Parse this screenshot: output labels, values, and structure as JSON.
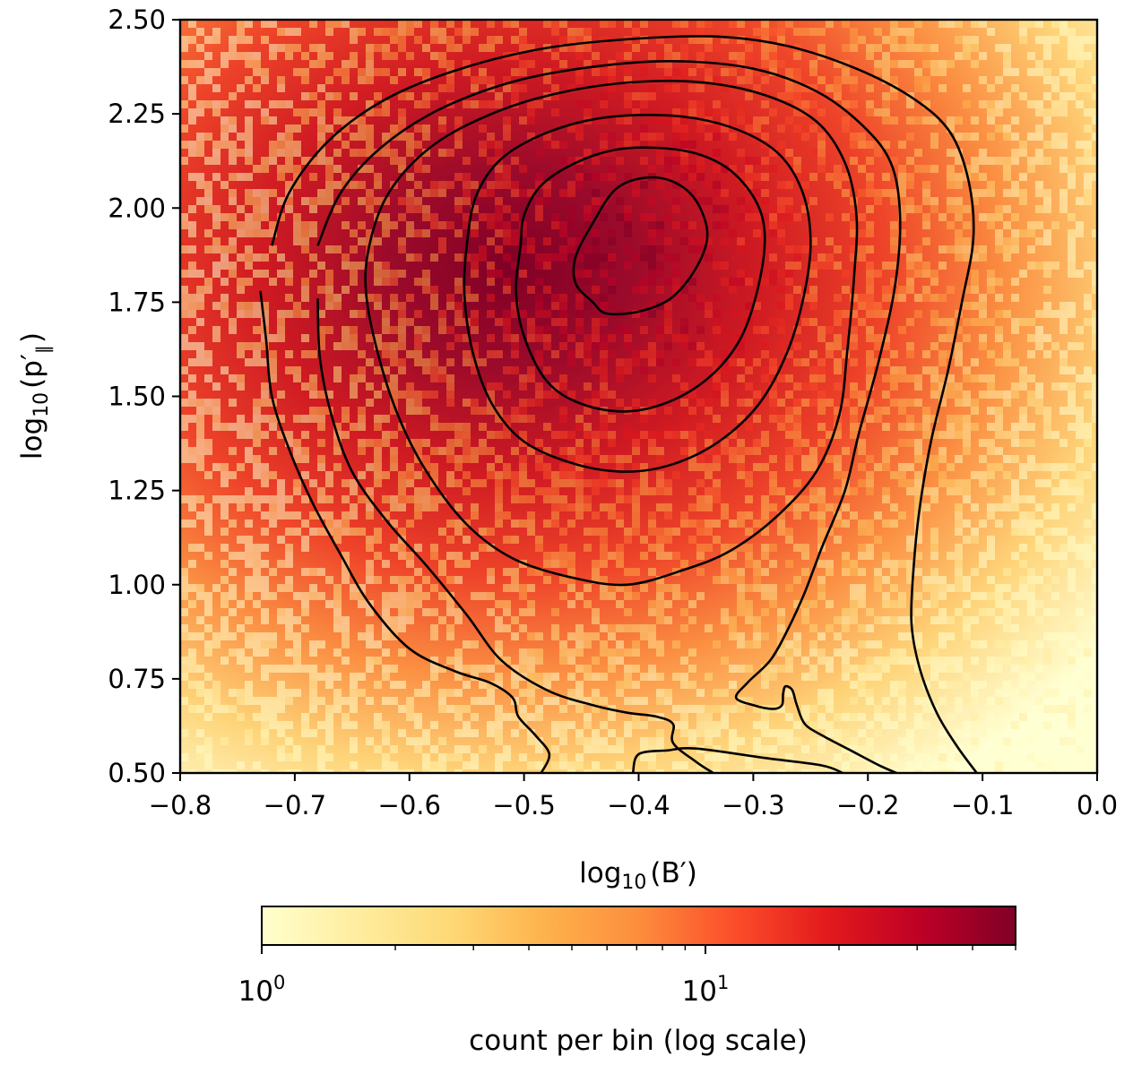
{
  "chart_data": {
    "type": "heatmap",
    "title": "",
    "xlabel": {
      "base": "log",
      "sub": "10",
      "arg": "(B′)"
    },
    "ylabel": {
      "base": "log",
      "sub": "10",
      "arg": "(p′",
      "argsub": "∥",
      "close": ")"
    },
    "xlim": [
      -0.8,
      0.0
    ],
    "ylim": [
      0.5,
      2.5
    ],
    "xticks": [
      -0.8,
      -0.7,
      -0.6,
      -0.5,
      -0.4,
      -0.3,
      -0.2,
      -0.1,
      0.0
    ],
    "xtick_labels": [
      "−0.8",
      "−0.7",
      "−0.6",
      "−0.5",
      "−0.4",
      "−0.3",
      "−0.2",
      "−0.1",
      "0.0"
    ],
    "yticks": [
      0.5,
      0.75,
      1.0,
      1.25,
      1.5,
      1.75,
      2.0,
      2.25,
      2.5
    ],
    "ytick_labels": [
      "0.50",
      "0.75",
      "1.00",
      "1.25",
      "1.50",
      "1.75",
      "2.00",
      "2.25",
      "2.50"
    ],
    "colorbar": {
      "label": "count per bin (log scale)",
      "scale": "log",
      "range": [
        1,
        50
      ],
      "ticks": [
        1,
        10
      ],
      "tick_labels": [
        {
          "base": "10",
          "exp": "0"
        },
        {
          "base": "10",
          "exp": "1"
        }
      ],
      "colormap": [
        "#ffffcc",
        "#ffeda0",
        "#fed976",
        "#feb24c",
        "#fd8d3c",
        "#fc4e2a",
        "#e31a1c",
        "#bd0026",
        "#800026"
      ]
    },
    "density_peak": {
      "x": -0.41,
      "y": 1.9,
      "max_count": 50
    },
    "contours": [
      [
        [
          -0.455,
          1.87
        ],
        [
          -0.44,
          1.96
        ],
        [
          -0.42,
          2.05
        ],
        [
          -0.395,
          2.08
        ],
        [
          -0.37,
          2.07
        ],
        [
          -0.35,
          2.02
        ],
        [
          -0.34,
          1.93
        ],
        [
          -0.35,
          1.84
        ],
        [
          -0.372,
          1.76
        ],
        [
          -0.4,
          1.725
        ],
        [
          -0.428,
          1.72
        ],
        [
          -0.44,
          1.75
        ],
        [
          -0.455,
          1.8
        ]
      ],
      [
        [
          -0.503,
          1.9
        ],
        [
          -0.5,
          1.98
        ],
        [
          -0.485,
          2.06
        ],
        [
          -0.455,
          2.12
        ],
        [
          -0.42,
          2.155
        ],
        [
          -0.385,
          2.16
        ],
        [
          -0.35,
          2.145
        ],
        [
          -0.32,
          2.1
        ],
        [
          -0.298,
          2.02
        ],
        [
          -0.29,
          1.93
        ],
        [
          -0.295,
          1.8
        ],
        [
          -0.31,
          1.66
        ],
        [
          -0.335,
          1.56
        ],
        [
          -0.37,
          1.49
        ],
        [
          -0.41,
          1.46
        ],
        [
          -0.45,
          1.48
        ],
        [
          -0.48,
          1.54
        ],
        [
          -0.5,
          1.66
        ],
        [
          -0.507,
          1.78
        ]
      ],
      [
        [
          -0.55,
          1.9
        ],
        [
          -0.542,
          2.03
        ],
        [
          -0.52,
          2.13
        ],
        [
          -0.48,
          2.2
        ],
        [
          -0.43,
          2.24
        ],
        [
          -0.37,
          2.245
        ],
        [
          -0.32,
          2.215
        ],
        [
          -0.28,
          2.15
        ],
        [
          -0.258,
          2.05
        ],
        [
          -0.25,
          1.92
        ],
        [
          -0.255,
          1.78
        ],
        [
          -0.27,
          1.62
        ],
        [
          -0.295,
          1.48
        ],
        [
          -0.33,
          1.38
        ],
        [
          -0.37,
          1.32
        ],
        [
          -0.41,
          1.3
        ],
        [
          -0.455,
          1.32
        ],
        [
          -0.5,
          1.38
        ],
        [
          -0.528,
          1.48
        ],
        [
          -0.545,
          1.62
        ],
        [
          -0.552,
          1.77
        ]
      ],
      [
        [
          -0.635,
          1.9
        ],
        [
          -0.62,
          2.03
        ],
        [
          -0.59,
          2.14
        ],
        [
          -0.55,
          2.22
        ],
        [
          -0.49,
          2.29
        ],
        [
          -0.42,
          2.33
        ],
        [
          -0.35,
          2.335
        ],
        [
          -0.29,
          2.3
        ],
        [
          -0.245,
          2.23
        ],
        [
          -0.22,
          2.12
        ],
        [
          -0.21,
          1.98
        ],
        [
          -0.212,
          1.82
        ],
        [
          -0.218,
          1.62
        ],
        [
          -0.225,
          1.45
        ],
        [
          -0.245,
          1.3
        ],
        [
          -0.28,
          1.18
        ],
        [
          -0.32,
          1.09
        ],
        [
          -0.36,
          1.04
        ],
        [
          -0.41,
          1.0
        ],
        [
          -0.46,
          1.02
        ],
        [
          -0.51,
          1.07
        ],
        [
          -0.55,
          1.16
        ],
        [
          -0.585,
          1.3
        ],
        [
          -0.61,
          1.45
        ],
        [
          -0.628,
          1.62
        ],
        [
          -0.638,
          1.78
        ]
      ],
      [
        [
          -0.68,
          1.9
        ],
        [
          -0.66,
          2.04
        ],
        [
          -0.625,
          2.16
        ],
        [
          -0.575,
          2.26
        ],
        [
          -0.51,
          2.335
        ],
        [
          -0.44,
          2.375
        ],
        [
          -0.37,
          2.39
        ],
        [
          -0.3,
          2.37
        ],
        [
          -0.245,
          2.31
        ],
        [
          -0.205,
          2.22
        ],
        [
          -0.18,
          2.12
        ],
        [
          -0.172,
          1.98
        ],
        [
          -0.176,
          1.8
        ],
        [
          -0.19,
          1.6
        ],
        [
          -0.208,
          1.4
        ],
        [
          -0.22,
          1.25
        ],
        [
          -0.24,
          1.1
        ],
        [
          -0.255,
          0.98
        ],
        [
          -0.27,
          0.88
        ],
        [
          -0.285,
          0.8
        ],
        [
          -0.305,
          0.74
        ],
        [
          -0.315,
          0.7
        ],
        [
          -0.3,
          0.68
        ],
        [
          -0.283,
          0.67
        ],
        [
          -0.275,
          0.68
        ],
        [
          -0.274,
          0.71
        ],
        [
          -0.272,
          0.73
        ],
        [
          -0.266,
          0.72
        ],
        [
          -0.262,
          0.68
        ],
        [
          -0.255,
          0.63
        ],
        [
          -0.24,
          0.6
        ],
        [
          -0.215,
          0.56
        ],
        [
          -0.19,
          0.52
        ],
        [
          -0.175,
          0.5
        ]
      ],
      [
        [
          -0.335,
          0.5
        ],
        [
          -0.35,
          0.53
        ],
        [
          -0.37,
          0.58
        ],
        [
          -0.37,
          0.63
        ],
        [
          -0.385,
          0.65
        ],
        [
          -0.41,
          0.66
        ],
        [
          -0.44,
          0.68
        ],
        [
          -0.48,
          0.72
        ],
        [
          -0.52,
          0.8
        ],
        [
          -0.55,
          0.92
        ],
        [
          -0.585,
          1.05
        ],
        [
          -0.62,
          1.17
        ],
        [
          -0.65,
          1.3
        ],
        [
          -0.668,
          1.45
        ],
        [
          -0.678,
          1.6
        ],
        [
          -0.68,
          1.76
        ]
      ],
      [
        [
          -0.72,
          1.9
        ],
        [
          -0.705,
          2.04
        ],
        [
          -0.67,
          2.18
        ],
        [
          -0.62,
          2.29
        ],
        [
          -0.555,
          2.37
        ],
        [
          -0.48,
          2.425
        ],
        [
          -0.4,
          2.45
        ],
        [
          -0.33,
          2.455
        ],
        [
          -0.27,
          2.43
        ],
        [
          -0.21,
          2.37
        ],
        [
          -0.16,
          2.29
        ],
        [
          -0.128,
          2.2
        ],
        [
          -0.112,
          2.07
        ],
        [
          -0.108,
          1.92
        ],
        [
          -0.118,
          1.75
        ],
        [
          -0.13,
          1.57
        ],
        [
          -0.145,
          1.38
        ],
        [
          -0.155,
          1.2
        ],
        [
          -0.16,
          1.05
        ],
        [
          -0.162,
          0.9
        ],
        [
          -0.155,
          0.78
        ],
        [
          -0.14,
          0.66
        ],
        [
          -0.122,
          0.57
        ],
        [
          -0.105,
          0.5
        ]
      ],
      [
        [
          -0.485,
          0.5
        ],
        [
          -0.478,
          0.55
        ],
        [
          -0.49,
          0.6
        ],
        [
          -0.505,
          0.65
        ],
        [
          -0.51,
          0.7
        ],
        [
          -0.53,
          0.74
        ],
        [
          -0.56,
          0.77
        ],
        [
          -0.6,
          0.83
        ],
        [
          -0.635,
          0.95
        ],
        [
          -0.66,
          1.08
        ],
        [
          -0.685,
          1.22
        ],
        [
          -0.705,
          1.36
        ],
        [
          -0.72,
          1.5
        ],
        [
          -0.725,
          1.65
        ],
        [
          -0.73,
          1.78
        ]
      ],
      [
        [
          -0.222,
          0.5
        ],
        [
          -0.24,
          0.52
        ],
        [
          -0.29,
          0.54
        ],
        [
          -0.35,
          0.565
        ],
        [
          -0.375,
          0.56
        ],
        [
          -0.4,
          0.55
        ],
        [
          -0.405,
          0.5
        ]
      ]
    ]
  }
}
